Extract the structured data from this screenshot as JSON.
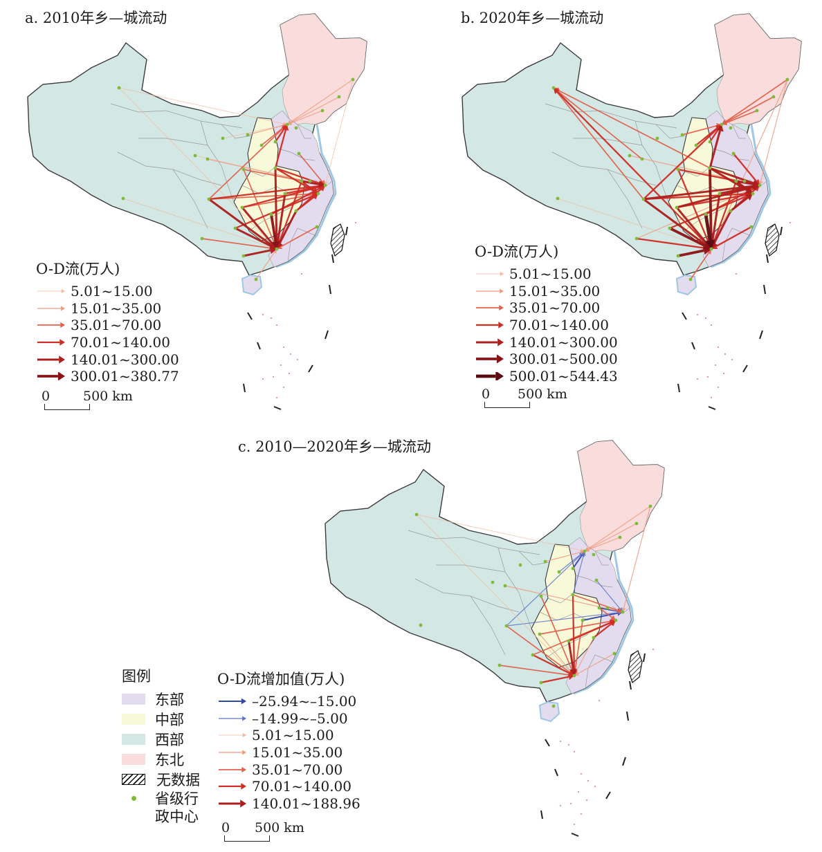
{
  "panels": [
    {
      "id": "a",
      "title": "a. 2010年乡—城流动",
      "legend_title": "O-D流(万人)",
      "classes": [
        {
          "label": "5.01~15.00",
          "color": "#f4b79c",
          "width": 0.8
        },
        {
          "label": "15.01~35.00",
          "color": "#ee9c80",
          "width": 1.2
        },
        {
          "label": "35.01~70.00",
          "color": "#e2604a",
          "width": 1.7
        },
        {
          "label": "70.01~140.00",
          "color": "#cf2c24",
          "width": 2.3
        },
        {
          "label": "140.01~300.00",
          "color": "#ad1d1d",
          "width": 3.0
        },
        {
          "label": "300.01~380.77",
          "color": "#8b1318",
          "width": 3.8
        }
      ],
      "scale": {
        "zero": "0",
        "distance": "500 km"
      }
    },
    {
      "id": "b",
      "title": "b. 2020年乡—城流动",
      "legend_title": "O-D流(万人)",
      "classes": [
        {
          "label": "5.01~15.00",
          "color": "#f4b79c",
          "width": 0.8
        },
        {
          "label": "15.01~35.00",
          "color": "#ee9c80",
          "width": 1.2
        },
        {
          "label": "35.01~70.00",
          "color": "#e2604a",
          "width": 1.7
        },
        {
          "label": "70.01~140.00",
          "color": "#cf2c24",
          "width": 2.3
        },
        {
          "label": "140.01~300.00",
          "color": "#ad1d1d",
          "width": 3.0
        },
        {
          "label": "300.01~500.00",
          "color": "#8b1318",
          "width": 3.8
        },
        {
          "label": "500.01~544.43",
          "color": "#5c0d12",
          "width": 4.8
        }
      ],
      "scale": {
        "zero": "0",
        "distance": "500 km"
      }
    },
    {
      "id": "c",
      "title": "c. 2010—2020年乡—城流动",
      "legend_title": "O-D流增加值(万人)",
      "classes": [
        {
          "label": "–25.94~–15.00",
          "color": "#2f47a8",
          "width": 2.0
        },
        {
          "label": "–14.99~–5.00",
          "color": "#5b74c7",
          "width": 1.2
        },
        {
          "label": "5.01~15.00",
          "color": "#f4b79c",
          "width": 0.8
        },
        {
          "label": "15.01~35.00",
          "color": "#ee9c80",
          "width": 1.2
        },
        {
          "label": "35.01~70.00",
          "color": "#e2604a",
          "width": 1.7
        },
        {
          "label": "70.01~140.00",
          "color": "#cf2c24",
          "width": 2.3
        },
        {
          "label": "140.01~188.96",
          "color": "#ad1d1d",
          "width": 3.0
        }
      ],
      "scale": {
        "zero": "0",
        "distance": "500 km"
      }
    }
  ],
  "region_legend": {
    "title": "图例",
    "items": [
      {
        "label": "东部",
        "color": "#e3dcee"
      },
      {
        "label": "中部",
        "color": "#f7f9d9"
      },
      {
        "label": "西部",
        "color": "#d3e8e4"
      },
      {
        "label": "东北",
        "color": "#f9dcdc"
      }
    ],
    "no_data": "无数据",
    "capital_line1": "省级行",
    "capital_line2": "政中心"
  },
  "colors": {
    "east": "#e3dcee",
    "central": "#f7f9d9",
    "west": "#d3e8e4",
    "northeast": "#f9dcdc",
    "coast": "#9cc7e6",
    "capital_dot": "#7dbb38",
    "boundary": "#3a3a3a"
  }
}
